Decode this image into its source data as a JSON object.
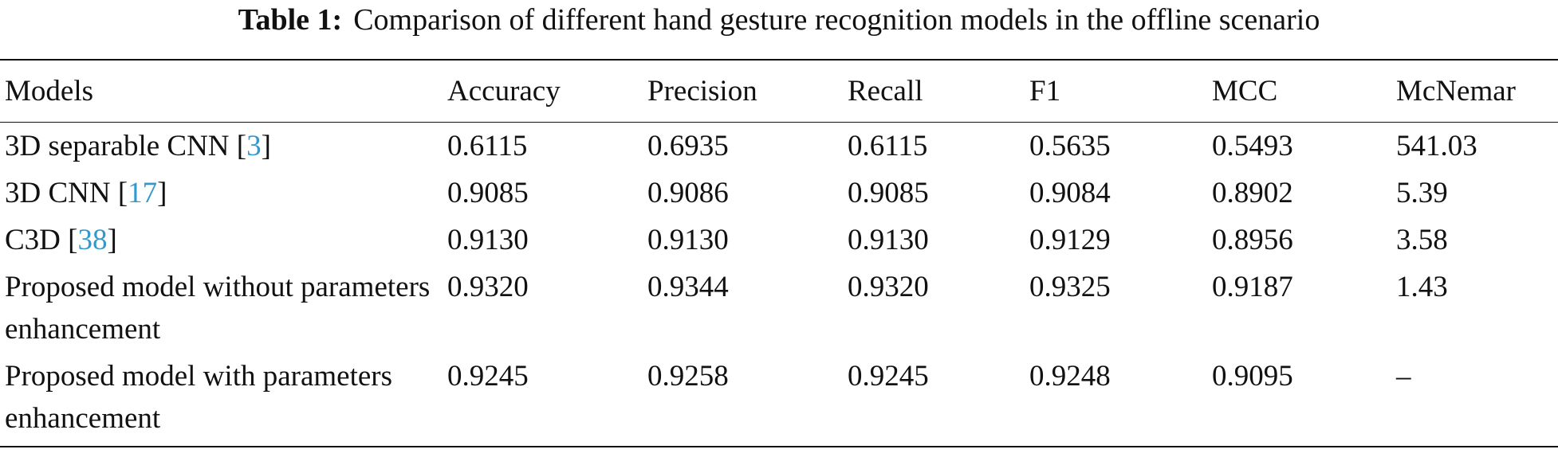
{
  "caption": {
    "label": "Table 1:",
    "text": "Comparison of different hand gesture recognition models in the offline scenario"
  },
  "table": {
    "header": [
      "Models",
      "Accuracy",
      "Precision",
      "Recall",
      "F1",
      "MCC",
      "McNemar"
    ],
    "rows": [
      [
        [
          "3D separable CNN [",
          "3",
          "]"
        ],
        "0.6115",
        "0.6935",
        "0.6115",
        "0.5635",
        "0.5493",
        "541.03"
      ],
      [
        [
          "3D CNN [",
          "17",
          "]"
        ],
        "0.9085",
        "0.9086",
        "0.9085",
        "0.9084",
        "0.8902",
        "5.39"
      ],
      [
        [
          "C3D [",
          "38",
          "]"
        ],
        "0.9130",
        "0.9130",
        "0.9130",
        "0.9129",
        "0.8956",
        "3.58"
      ],
      [
        [
          "Proposed model without parameters enhancement"
        ],
        "0.9320",
        "0.9344",
        "0.9320",
        "0.9325",
        "0.9187",
        "1.43"
      ],
      [
        [
          "Proposed model with parameters enhancement"
        ],
        "0.9245",
        "0.9258",
        "0.9245",
        "0.9248",
        "0.9095",
        "–"
      ]
    ]
  }
}
